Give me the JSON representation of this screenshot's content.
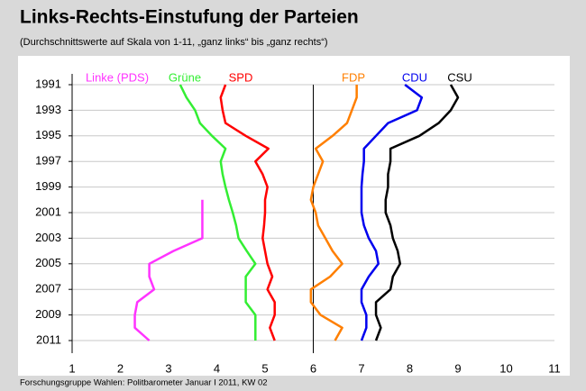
{
  "chart_data": {
    "type": "line",
    "title": "Links-Rechts-Einstufung der Parteien",
    "subtitle": "(Durchschnittswerte auf Skala von 1-11, „ganz links“ bis „ganz rechts“)",
    "source": "Forschungsgruppe Wahlen: Politbarometer Januar I 2011, KW 02",
    "y": [
      1991,
      1992,
      1993,
      1994,
      1995,
      1996,
      1997,
      1998,
      1999,
      2000,
      2001,
      2002,
      2003,
      2004,
      2005,
      2006,
      2007,
      2008,
      2009,
      2010,
      2011
    ],
    "ylim": [
      1991,
      2011
    ],
    "y_inverted": true,
    "yticks": [
      1991,
      1993,
      1995,
      1997,
      1999,
      2001,
      2003,
      2005,
      2007,
      2009,
      2011
    ],
    "xlim": [
      1,
      11
    ],
    "xticks": [
      1,
      2,
      3,
      4,
      5,
      6,
      7,
      8,
      9,
      10,
      11
    ],
    "reference_line_x": 6,
    "grid": true,
    "series": [
      {
        "name": "Linke (PDS)",
        "color": "#ff33ff",
        "values": [
          null,
          null,
          null,
          null,
          null,
          null,
          null,
          null,
          null,
          3.7,
          3.7,
          3.7,
          3.7,
          3.1,
          2.6,
          2.6,
          2.7,
          2.35,
          2.3,
          2.3,
          2.6
        ]
      },
      {
        "name": "Grüne",
        "color": "#33ee33",
        "values": [
          3.24,
          3.37,
          3.55,
          3.65,
          3.9,
          4.18,
          4.08,
          4.12,
          4.18,
          4.25,
          4.33,
          4.4,
          4.45,
          4.62,
          4.8,
          4.6,
          4.6,
          4.6,
          4.8,
          4.8,
          4.8
        ]
      },
      {
        "name": "SPD",
        "color": "#ff0000",
        "values": [
          4.18,
          4.08,
          4.12,
          4.18,
          4.6,
          5.07,
          4.8,
          4.95,
          5.05,
          5.0,
          5.0,
          4.98,
          4.95,
          5.0,
          5.05,
          5.15,
          5.05,
          5.2,
          5.2,
          5.1,
          5.2
        ]
      },
      {
        "name": "FDP",
        "color": "#ff7f00",
        "values": [
          6.9,
          6.9,
          6.8,
          6.7,
          6.4,
          6.05,
          6.2,
          6.1,
          6.0,
          5.95,
          6.05,
          6.1,
          6.25,
          6.4,
          6.6,
          6.35,
          5.95,
          5.95,
          6.15,
          6.6,
          6.45
        ]
      },
      {
        "name": "CDU",
        "color": "#0000ee",
        "values": [
          7.9,
          8.25,
          8.15,
          7.55,
          7.3,
          7.05,
          7.05,
          7.02,
          7.0,
          7.0,
          7.0,
          7.05,
          7.15,
          7.3,
          7.35,
          7.15,
          7.0,
          7.0,
          7.1,
          7.1,
          7.0
        ]
      },
      {
        "name": "CSU",
        "color": "#000000",
        "values": [
          8.85,
          9.0,
          8.85,
          8.6,
          8.2,
          7.6,
          7.6,
          7.55,
          7.55,
          7.5,
          7.5,
          7.6,
          7.65,
          7.75,
          7.8,
          7.65,
          7.6,
          7.3,
          7.3,
          7.4,
          7.3
        ]
      }
    ]
  }
}
